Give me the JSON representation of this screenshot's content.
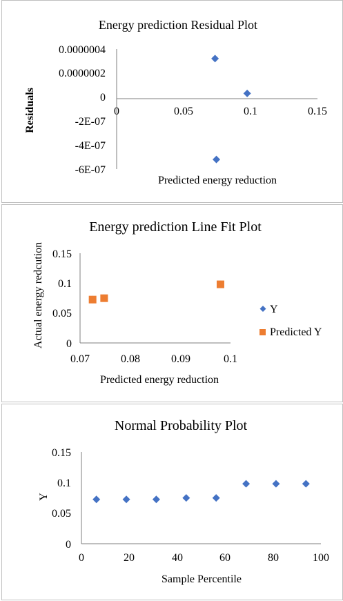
{
  "chart_data": [
    {
      "type": "scatter",
      "title": "Energy prediction Residual Plot",
      "xlabel": "Predicted energy reduction",
      "ylabel": "Residuals",
      "xlim": [
        0,
        0.15
      ],
      "ylim": [
        -6e-07,
        4e-07
      ],
      "x_ticks": [
        "0",
        "0.05",
        "0.1",
        "0.15"
      ],
      "y_ticks": [
        "0.0000004",
        "0.0000002",
        "0",
        "-2E-07",
        "-4E-07",
        "-6E-07"
      ],
      "grid": false,
      "series": [
        {
          "color": "#4472C4",
          "marker": "diamond",
          "points": [
            [
              0.0735,
              3.2e-07
            ],
            [
              0.0975,
              3e-08
            ],
            [
              0.0745,
              -5.2e-07
            ]
          ]
        }
      ]
    },
    {
      "type": "scatter",
      "title": "Energy prediction Line Fit  Plot",
      "xlabel": "Predicted energy reduction",
      "ylabel": "Actual energy redcution",
      "xlim": [
        0.07,
        0.1
      ],
      "ylim": [
        0,
        0.15
      ],
      "x_ticks": [
        "0.07",
        "0.08",
        "0.09",
        "0.1"
      ],
      "y_ticks": [
        "0.15",
        "0.1",
        "0.05",
        "0"
      ],
      "grid": false,
      "legend": "right",
      "series": [
        {
          "name": "Y",
          "color": "#4472C4",
          "marker": "diamond",
          "points": [
            [
              0.0725,
              0.0725
            ],
            [
              0.0748,
              0.0748
            ],
            [
              0.098,
              0.098
            ]
          ]
        },
        {
          "name": "Predicted Y",
          "color": "#ED7D31",
          "marker": "square",
          "points": [
            [
              0.0725,
              0.0725
            ],
            [
              0.0748,
              0.0748
            ],
            [
              0.098,
              0.098
            ]
          ]
        }
      ]
    },
    {
      "type": "scatter",
      "title": "Normal Probability Plot",
      "xlabel": "Sample Percentile",
      "ylabel": "Y",
      "xlim": [
        0,
        100
      ],
      "ylim": [
        0,
        0.15
      ],
      "x_ticks": [
        "0",
        "20",
        "40",
        "60",
        "80",
        "100"
      ],
      "y_ticks": [
        "0.15",
        "0.1",
        "0.05",
        "0"
      ],
      "grid": false,
      "series": [
        {
          "color": "#4472C4",
          "marker": "diamond",
          "points": [
            [
              6.25,
              0.0725
            ],
            [
              18.75,
              0.0725
            ],
            [
              31.25,
              0.0725
            ],
            [
              43.75,
              0.0748
            ],
            [
              56.25,
              0.0748
            ],
            [
              68.75,
              0.098
            ],
            [
              81.25,
              0.098
            ],
            [
              93.75,
              0.098
            ]
          ]
        }
      ]
    }
  ]
}
